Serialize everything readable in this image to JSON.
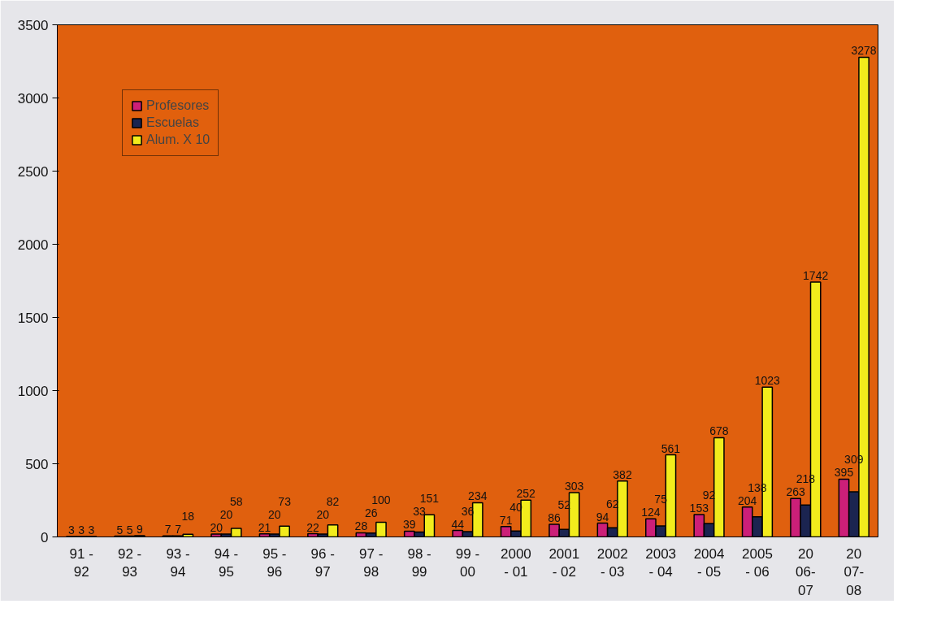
{
  "chart_data": {
    "type": "bar",
    "categories": [
      "91 -\n92",
      "92 -\n93",
      "93 -\n94",
      "94 -\n95",
      "95 -\n96",
      "96 -\n97",
      "97 -\n98",
      "98 -\n99",
      "99 -\n00",
      "2000\n- 01",
      "2001\n- 02",
      "2002\n- 03",
      "2003\n- 04",
      "2004\n- 05",
      "2005\n- 06",
      "20\n06-\n07",
      "20\n07-\n08"
    ],
    "series": [
      {
        "name": "Profesores",
        "color": "#cc1f78",
        "values": [
          3,
          5,
          7,
          20,
          21,
          22,
          28,
          39,
          44,
          71,
          86,
          94,
          124,
          153,
          204,
          263,
          395
        ]
      },
      {
        "name": "Escuelas",
        "color": "#1b2450",
        "values": [
          3,
          5,
          7,
          20,
          20,
          20,
          26,
          33,
          36,
          40,
          52,
          62,
          75,
          92,
          138,
          218,
          309
        ]
      },
      {
        "name": "Alum. X 10",
        "color": "#f2ec1c",
        "values": [
          3,
          9,
          18,
          58,
          73,
          82,
          100,
          151,
          234,
          252,
          303,
          382,
          561,
          678,
          1023,
          1742,
          3278
        ]
      }
    ],
    "ylim": [
      0,
      3500
    ],
    "yticks": [
      0,
      500,
      1000,
      1500,
      2000,
      2500,
      3000,
      3500
    ],
    "grid": false,
    "legend": "top left",
    "data_labels": true
  }
}
